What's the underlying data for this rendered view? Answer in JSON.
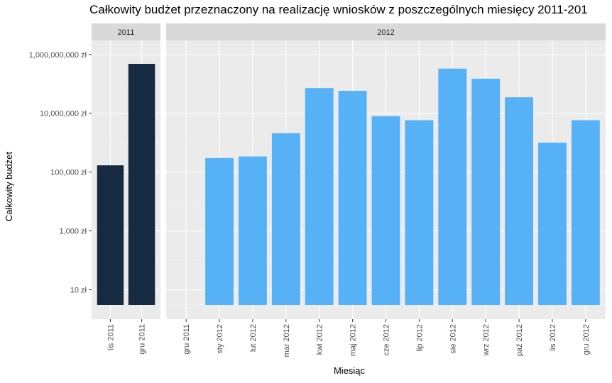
{
  "chart_data": {
    "type": "bar",
    "title": "Całkowity budżet przeznaczony na realizację wniosków z poszczególnych miesięcy 2011-201",
    "xlabel": "Miesiąc",
    "ylabel": "Całkowity budżet",
    "y_scale": "log10",
    "ylim": [
      1,
      3000000000
    ],
    "y_ticks": [
      10,
      1000,
      100000,
      10000000,
      1000000000
    ],
    "y_tick_labels": [
      "10 zł",
      "1,000 zł",
      "100,000 zł",
      "10,000,000 zł",
      "1,000,000,000 zł"
    ],
    "grid": true,
    "facets": [
      {
        "label": "2011",
        "color": "#162b42",
        "categories": [
          "lis 2011",
          "gru 2011"
        ],
        "values": [
          170000,
          480000000
        ],
        "extra_tick_labels": []
      },
      {
        "label": "2012",
        "color": "#56b1f7",
        "categories": [
          "sty 2012",
          "lut 2012",
          "mar 2012",
          "kwi 2012",
          "maj 2012",
          "cze 2012",
          "lip 2012",
          "sie 2012",
          "wrz 2012",
          "paź 2012",
          "lis 2012",
          "gru 2012"
        ],
        "values": [
          300000,
          340000,
          2100000,
          72000000,
          58000000,
          8000000,
          5800000,
          330000000,
          150000000,
          35000000,
          1000000,
          5800000
        ],
        "extra_tick_labels": [
          "gru 2011"
        ]
      }
    ]
  }
}
